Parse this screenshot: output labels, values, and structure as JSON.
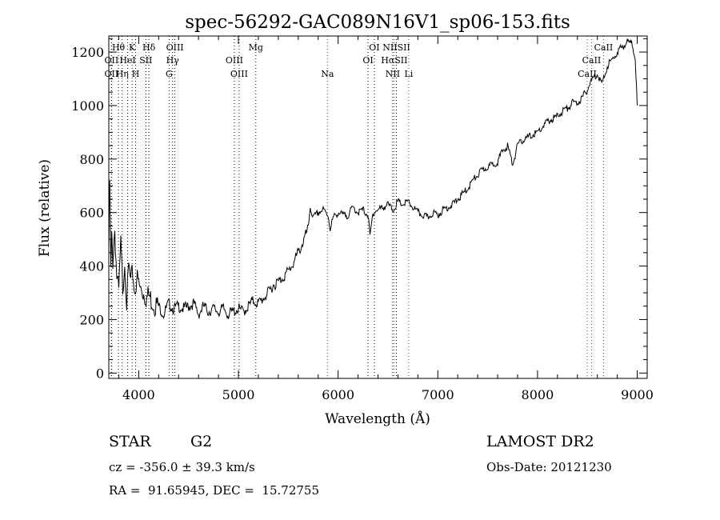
{
  "chart_data": {
    "type": "line",
    "title": "spec-56292-GAC089N16V1_sp06-153.fits",
    "xlabel": "Wavelength (Å)",
    "ylabel": "Flux (relative)",
    "xlim": [
      3700,
      9100
    ],
    "ylim": [
      -20,
      1260
    ],
    "x_ticks": [
      4000,
      5000,
      6000,
      7000,
      8000,
      9000
    ],
    "y_ticks": [
      0,
      200,
      400,
      600,
      800,
      1000,
      1200
    ],
    "grid": false,
    "series": [
      {
        "x": [
          3700,
          3710,
          3720,
          3730,
          3740,
          3760,
          3780,
          3800,
          3820,
          3840,
          3860,
          3880,
          3900,
          3920,
          3940,
          3960,
          3980,
          4000,
          4020,
          4050,
          4080,
          4100,
          4150,
          4200,
          4250,
          4300,
          4350,
          4400,
          4450,
          4500,
          4550,
          4600,
          4650,
          4700,
          4750,
          4800,
          4850,
          4900,
          4950,
          5000,
          5050,
          5100,
          5150,
          5200,
          5250,
          5300,
          5350,
          5400,
          5450,
          5500,
          5550,
          5600,
          5650,
          5700,
          5720,
          5750,
          5800,
          5850,
          5900,
          5920,
          5950,
          6000,
          6050,
          6100,
          6150,
          6200,
          6250,
          6300,
          6320,
          6350,
          6400,
          6450,
          6500,
          6550,
          6600,
          6650,
          6700,
          6750,
          6800,
          6850,
          6900,
          6950,
          7000,
          7050,
          7100,
          7150,
          7200,
          7250,
          7300,
          7350,
          7400,
          7450,
          7500,
          7550,
          7600,
          7650,
          7700,
          7750,
          7800,
          7850,
          7900,
          7950,
          8000,
          8050,
          8100,
          8150,
          8200,
          8250,
          8300,
          8350,
          8400,
          8450,
          8500,
          8550,
          8600,
          8650,
          8700,
          8750,
          8800,
          8850,
          8900,
          8950,
          8980,
          9000
        ],
        "y": [
          460,
          720,
          380,
          500,
          420,
          540,
          360,
          300,
          480,
          320,
          420,
          260,
          400,
          330,
          380,
          300,
          360,
          330,
          310,
          300,
          280,
          290,
          260,
          250,
          220,
          260,
          240,
          250,
          240,
          250,
          260,
          220,
          250,
          230,
          240,
          230,
          240,
          220,
          230,
          240,
          230,
          250,
          270,
          260,
          280,
          300,
          330,
          340,
          360,
          380,
          410,
          450,
          490,
          540,
          620,
          580,
          600,
          610,
          590,
          540,
          580,
          600,
          590,
          590,
          620,
          600,
          610,
          590,
          510,
          600,
          610,
          620,
          630,
          610,
          640,
          630,
          640,
          620,
          600,
          590,
          580,
          600,
          590,
          610,
          620,
          630,
          650,
          670,
          690,
          720,
          740,
          760,
          770,
          780,
          790,
          830,
          850,
          780,
          850,
          870,
          880,
          890,
          900,
          920,
          940,
          950,
          960,
          980,
          990,
          1010,
          1010,
          1030,
          1060,
          1100,
          1120,
          1080,
          1150,
          1170,
          1200,
          1220,
          1240,
          1230,
          1180,
          1000
        ]
      }
    ],
    "lines": [
      {
        "name": "Hθ",
        "x": 3797,
        "row": 1,
        "color": "#000000"
      },
      {
        "name": "K",
        "x": 3934,
        "row": 1,
        "color": "#000000"
      },
      {
        "name": "Hδ",
        "x": 4102,
        "row": 1,
        "color": "#000000"
      },
      {
        "name": "OIII",
        "x": 4363,
        "row": 1,
        "color": "#000000"
      },
      {
        "name": "Mg",
        "x": 5175,
        "row": 1,
        "color": "#000000"
      },
      {
        "name": "OI",
        "x": 6363,
        "row": 1,
        "color": "#000000"
      },
      {
        "name": "NIISII",
        "x": 6585,
        "row": 1,
        "color": "#000000"
      },
      {
        "name": "CaII",
        "x": 8662,
        "row": 1,
        "color": "#ff0000"
      },
      {
        "name": "OII",
        "x": 3727,
        "row": 2,
        "color": "#000000"
      },
      {
        "name": "HeI",
        "x": 3889,
        "row": 2,
        "color": "#000000"
      },
      {
        "name": "SII",
        "x": 4072,
        "row": 2,
        "color": "#000000"
      },
      {
        "name": "Hγ",
        "x": 4340,
        "row": 2,
        "color": "#000000"
      },
      {
        "name": "OIII",
        "x": 4959,
        "row": 2,
        "color": "#000000"
      },
      {
        "name": "OI",
        "x": 6300,
        "row": 2,
        "color": "#000000"
      },
      {
        "name": "HαSII",
        "x": 6563,
        "row": 2,
        "color": "#ff0000"
      },
      {
        "name": "CaII",
        "x": 8542,
        "row": 2,
        "color": "#ff0000"
      },
      {
        "name": "OII",
        "x": 3727,
        "row": 3,
        "color": "#000000"
      },
      {
        "name": "Hη",
        "x": 3835,
        "row": 3,
        "color": "#000000"
      },
      {
        "name": "H",
        "x": 3969,
        "row": 3,
        "color": "#000000"
      },
      {
        "name": "G",
        "x": 4305,
        "row": 3,
        "color": "#000000"
      },
      {
        "name": "OIII",
        "x": 5007,
        "row": 3,
        "color": "#000000"
      },
      {
        "name": "Na",
        "x": 5893,
        "row": 3,
        "color": "#ff0000"
      },
      {
        "name": "NII",
        "x": 6548,
        "row": 3,
        "color": "#000000"
      },
      {
        "name": "Li",
        "x": 6708,
        "row": 3,
        "color": "#ff0000"
      },
      {
        "name": "CaII",
        "x": 8498,
        "row": 3,
        "color": "#ff0000"
      }
    ],
    "text_color": "#000000",
    "series_color": "#000000",
    "line_color_red": "#ff0000"
  },
  "info": {
    "object_class": "STAR",
    "subclass": "G2",
    "survey": "LAMOST DR2",
    "cz": "cz = -356.0 ± 39.3 km/s",
    "obs_date": "Obs-Date: 20121230",
    "coords": "RA =  91.65945, DEC =  15.72755"
  }
}
